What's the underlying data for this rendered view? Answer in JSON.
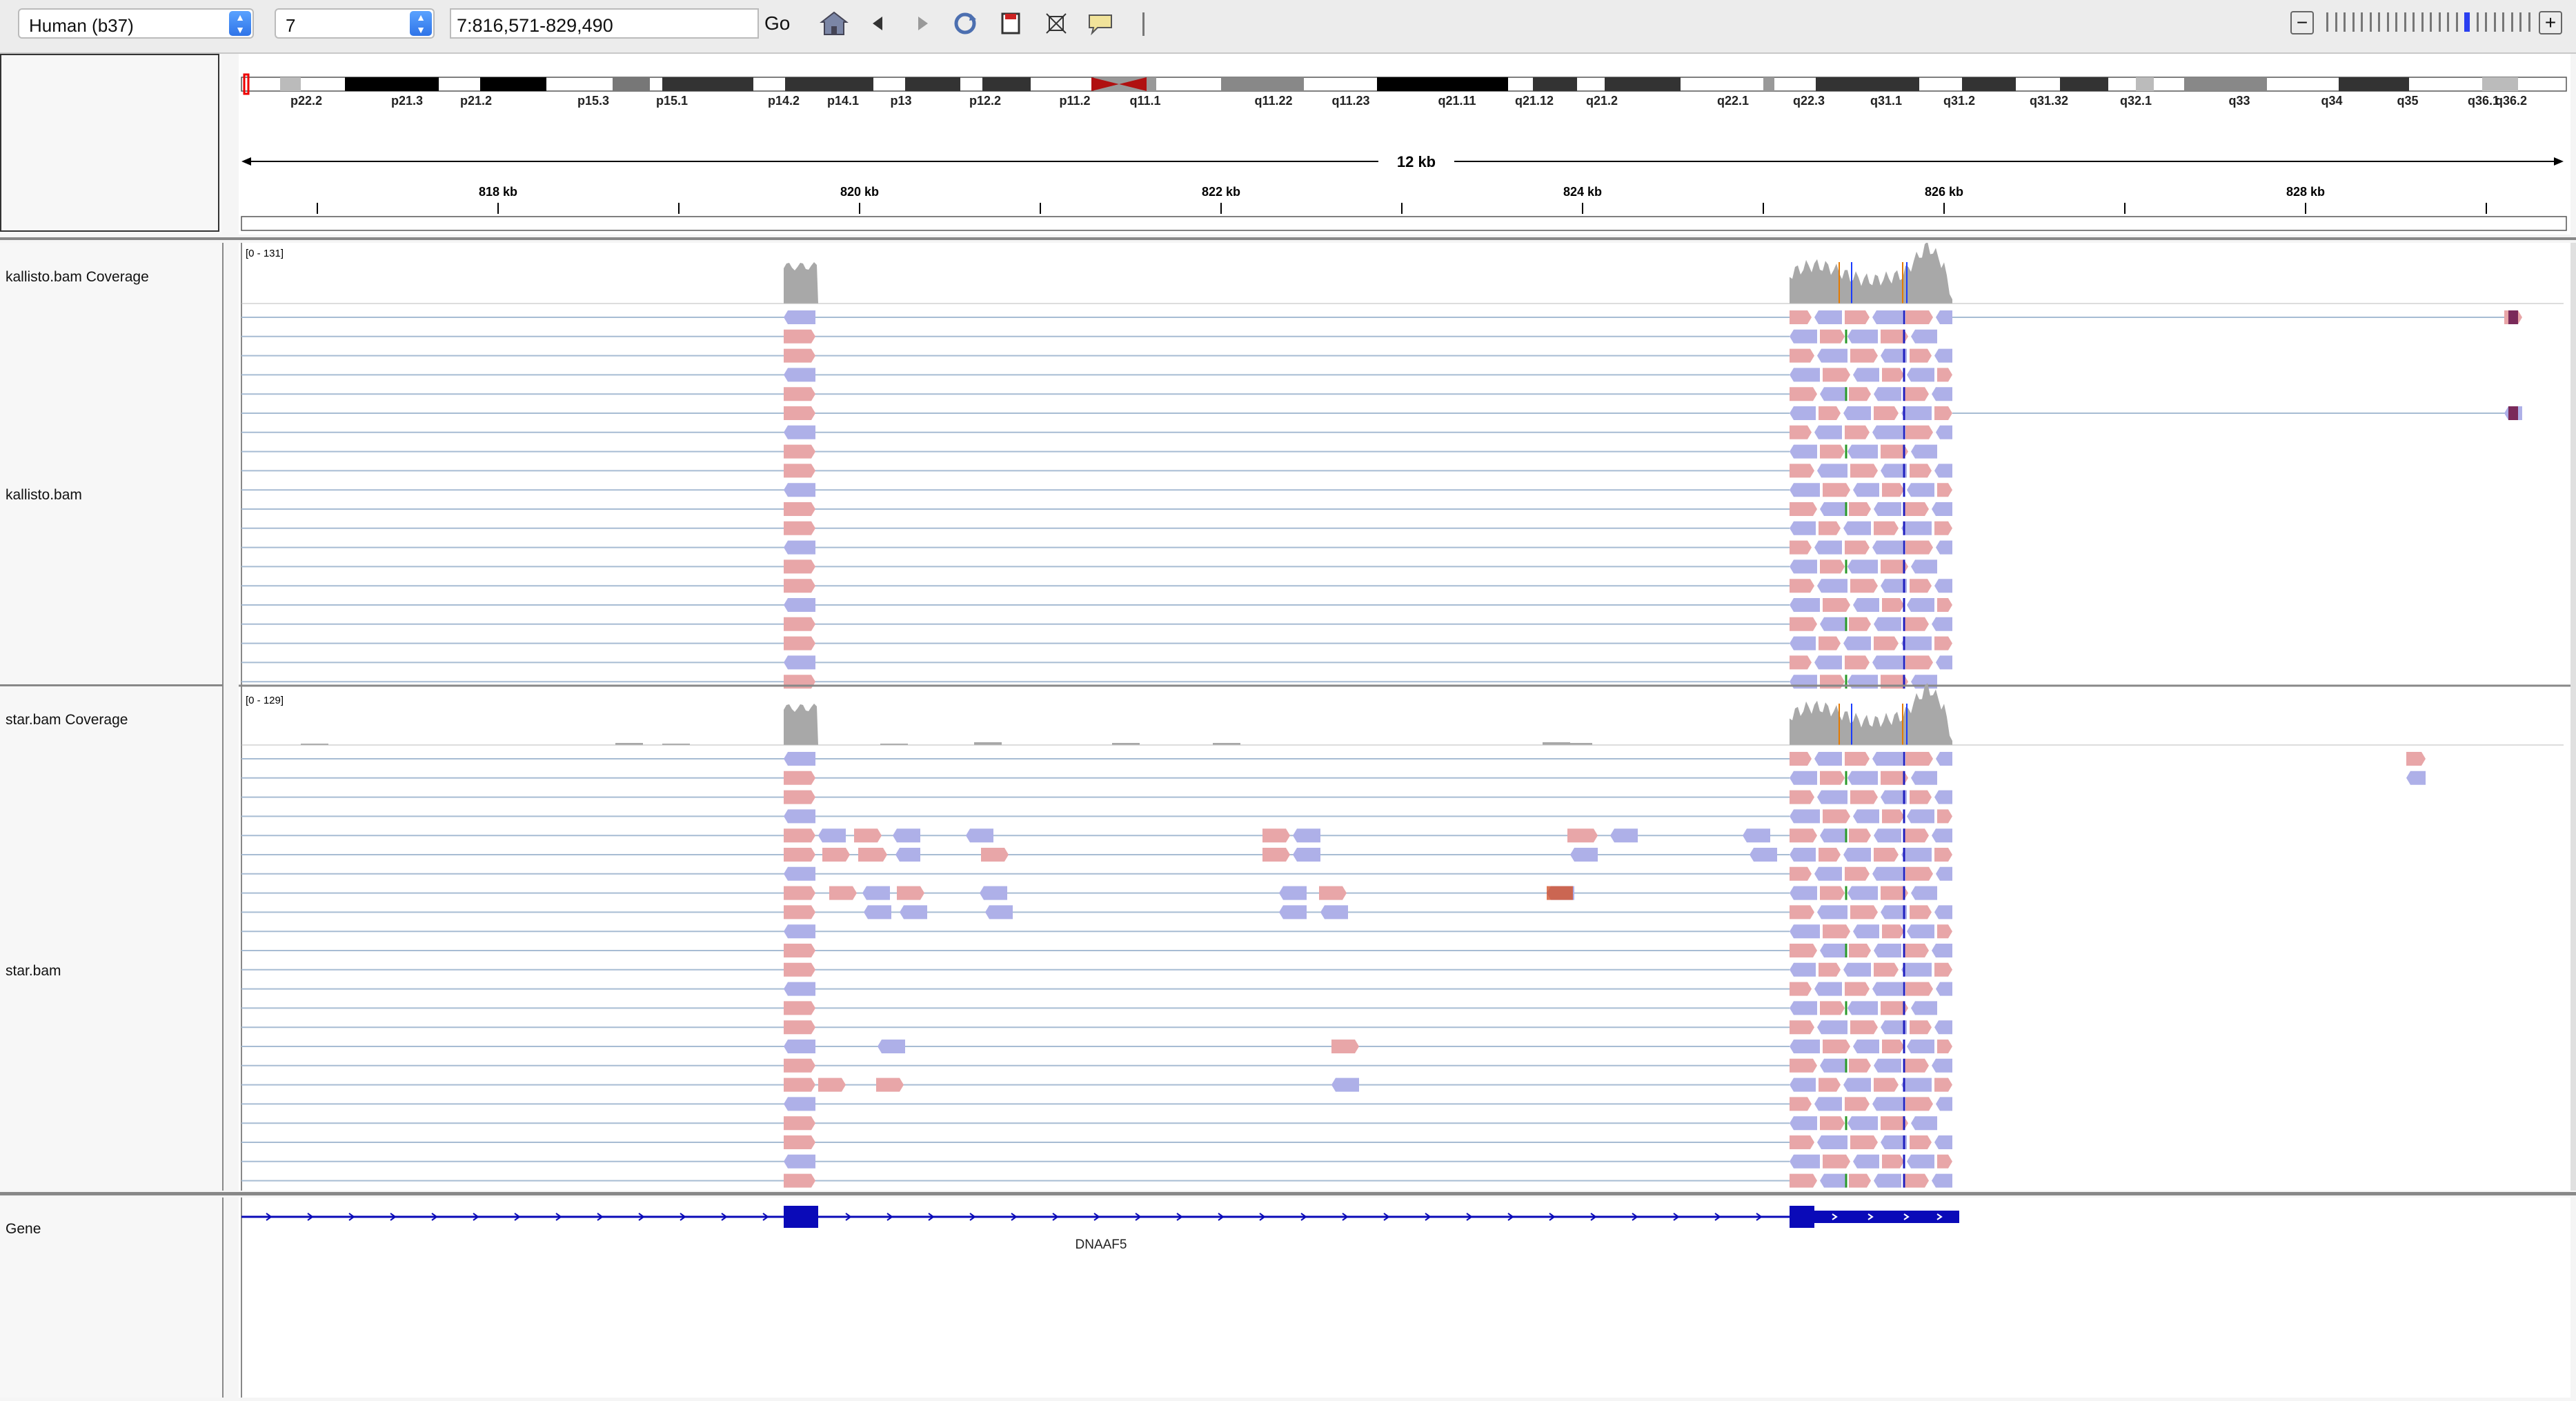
{
  "toolbar": {
    "genome": "Human (b37)",
    "chromosome": "7",
    "locus": "7:816,571-829,490",
    "go_label": "Go",
    "icons": [
      "home-icon",
      "back-icon",
      "forward-icon",
      "refresh-icon",
      "save-icon",
      "region-select-icon",
      "popup-info-icon"
    ],
    "zoom_minus": "−",
    "zoom_plus": "+",
    "zoom_ticks": 24,
    "zoom_selected": 16
  },
  "ideogram": {
    "bands": [
      "p22.2",
      "p21.3",
      "p21.2",
      "p15.3",
      "p15.1",
      "p14.2",
      "p14.1",
      "p13",
      "p12.2",
      "p11.2",
      "q11.1",
      "q11.22",
      "q11.23",
      "q21.11",
      "q21.12",
      "q21.2",
      "q22.1",
      "q22.3",
      "q31.1",
      "q31.2",
      "q31.32",
      "q32.1",
      "q33",
      "q34",
      "q35",
      "q36.1",
      "q36.2"
    ]
  },
  "ruler": {
    "span": "12 kb",
    "ticks": [
      "818 kb",
      "820 kb",
      "822 kb",
      "824 kb",
      "826 kb",
      "828 kb"
    ]
  },
  "tracks": {
    "kallisto_coverage": {
      "name": "kallisto.bam Coverage",
      "range": "[0 - 131]"
    },
    "kallisto_alignments": {
      "name": "kallisto.bam"
    },
    "star_coverage": {
      "name": "star.bam Coverage",
      "range": "[0 - 129]"
    },
    "star_alignments": {
      "name": "star.bam"
    },
    "gene": {
      "name": "Gene",
      "gene_label": "DNAAF5"
    }
  },
  "colors": {
    "read_forward": "#e8a6a8",
    "read_reverse": "#aeb0e8",
    "coverage": "#a8a8a8",
    "gene": "#0a0ab8",
    "junction": "#a7bcd3"
  }
}
